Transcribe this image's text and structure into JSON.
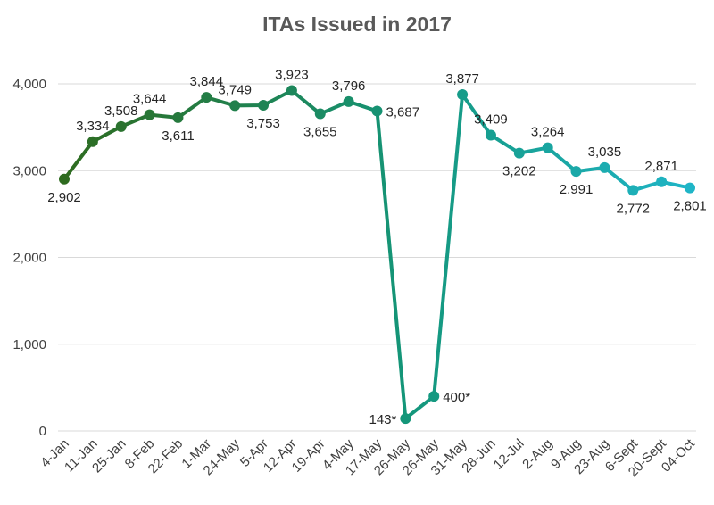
{
  "chart_data": {
    "type": "line",
    "title": "ITAs Issued in 2017",
    "xlabel": "",
    "ylabel": "",
    "ylim": [
      0,
      4000
    ],
    "yticks": [
      0,
      1000,
      2000,
      3000,
      4000
    ],
    "ytick_labels": [
      "0",
      "1,000",
      "2,000",
      "3,000",
      "4,000"
    ],
    "grid": true,
    "legend": "none",
    "categories": [
      "4-Jan",
      "11-Jan",
      "25-Jan",
      "8-Feb",
      "22-Feb",
      "1-Mar",
      "24-May",
      "5-Apr",
      "12-Apr",
      "19-Apr",
      "4-May",
      "17-May",
      "26-May",
      "26-May",
      "31-May",
      "28-Jun",
      "12-Jul",
      "2-Aug",
      "9-Aug",
      "23-Aug",
      "6-Sept",
      "20-Sept",
      "04-Oct"
    ],
    "values": [
      2902,
      3334,
      3508,
      3644,
      3611,
      3844,
      3749,
      3753,
      3923,
      3655,
      3796,
      3687,
      143,
      400,
      3877,
      3409,
      3202,
      3264,
      2991,
      3035,
      2772,
      2871,
      2801
    ],
    "data_labels": [
      "2,902",
      "3,334",
      "3,508",
      "3,644",
      "3,611",
      "3,844",
      "3,749",
      "3,753",
      "3,923",
      "3,655",
      "3,796",
      "3,687",
      "143*",
      "400*",
      "3,877",
      "3,409",
      "3,202",
      "3,264",
      "2,991",
      "3,035",
      "2,772",
      "2,871",
      "2,801"
    ],
    "colors": {
      "gradient_start": "#2E6B1F",
      "gradient_mid": "#14967A",
      "gradient_end": "#1FB5C7",
      "gridline": "#D9D9D9"
    }
  }
}
